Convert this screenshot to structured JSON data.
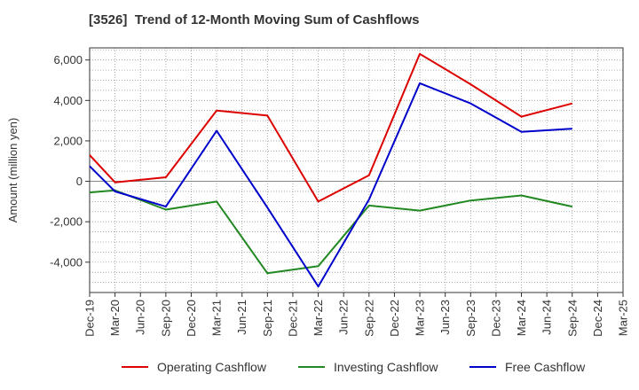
{
  "chart_data": {
    "type": "line",
    "title": "[3526]  Trend of 12-Month Moving Sum of Cashflows",
    "ylabel": "Amount (million yen)",
    "xlabel": "",
    "ylim": [
      -5500,
      6600
    ],
    "yticks": [
      -4000,
      -2000,
      0,
      2000,
      4000,
      6000
    ],
    "ytick_labels": [
      "-4,000",
      "-2,000",
      "0",
      "2,000",
      "4,000",
      "6,000"
    ],
    "categories": [
      "Dec-19",
      "Mar-20",
      "Jun-20",
      "Sep-20",
      "Dec-20",
      "Mar-21",
      "Jun-21",
      "Sep-21",
      "Dec-21",
      "Mar-22",
      "Jun-22",
      "Sep-22",
      "Dec-22",
      "Mar-23",
      "Jun-23",
      "Sep-23",
      "Dec-23",
      "Mar-24",
      "Jun-24",
      "Sep-24",
      "Dec-24",
      "Mar-25"
    ],
    "grid": true,
    "legend_position": "bottom",
    "series": [
      {
        "name": "Operating Cashflow",
        "color": "#dd0000",
        "values": [
          1300,
          -50,
          null,
          200,
          null,
          3500,
          null,
          3250,
          null,
          -1000,
          null,
          300,
          null,
          6300,
          null,
          4800,
          null,
          3200,
          null,
          3850,
          null,
          null
        ]
      },
      {
        "name": "Investing Cashflow",
        "color": "#228822",
        "values": [
          -550,
          -450,
          null,
          -1400,
          null,
          -1000,
          null,
          -4550,
          null,
          -4200,
          null,
          -1200,
          null,
          -1450,
          null,
          -950,
          null,
          -700,
          null,
          -1250,
          null,
          null
        ]
      },
      {
        "name": "Free Cashflow",
        "color": "#0000cc",
        "values": [
          750,
          -500,
          null,
          -1250,
          null,
          2500,
          null,
          -1300,
          null,
          -5200,
          null,
          -900,
          null,
          4850,
          null,
          3850,
          null,
          2450,
          null,
          2600,
          null,
          null
        ]
      }
    ]
  }
}
